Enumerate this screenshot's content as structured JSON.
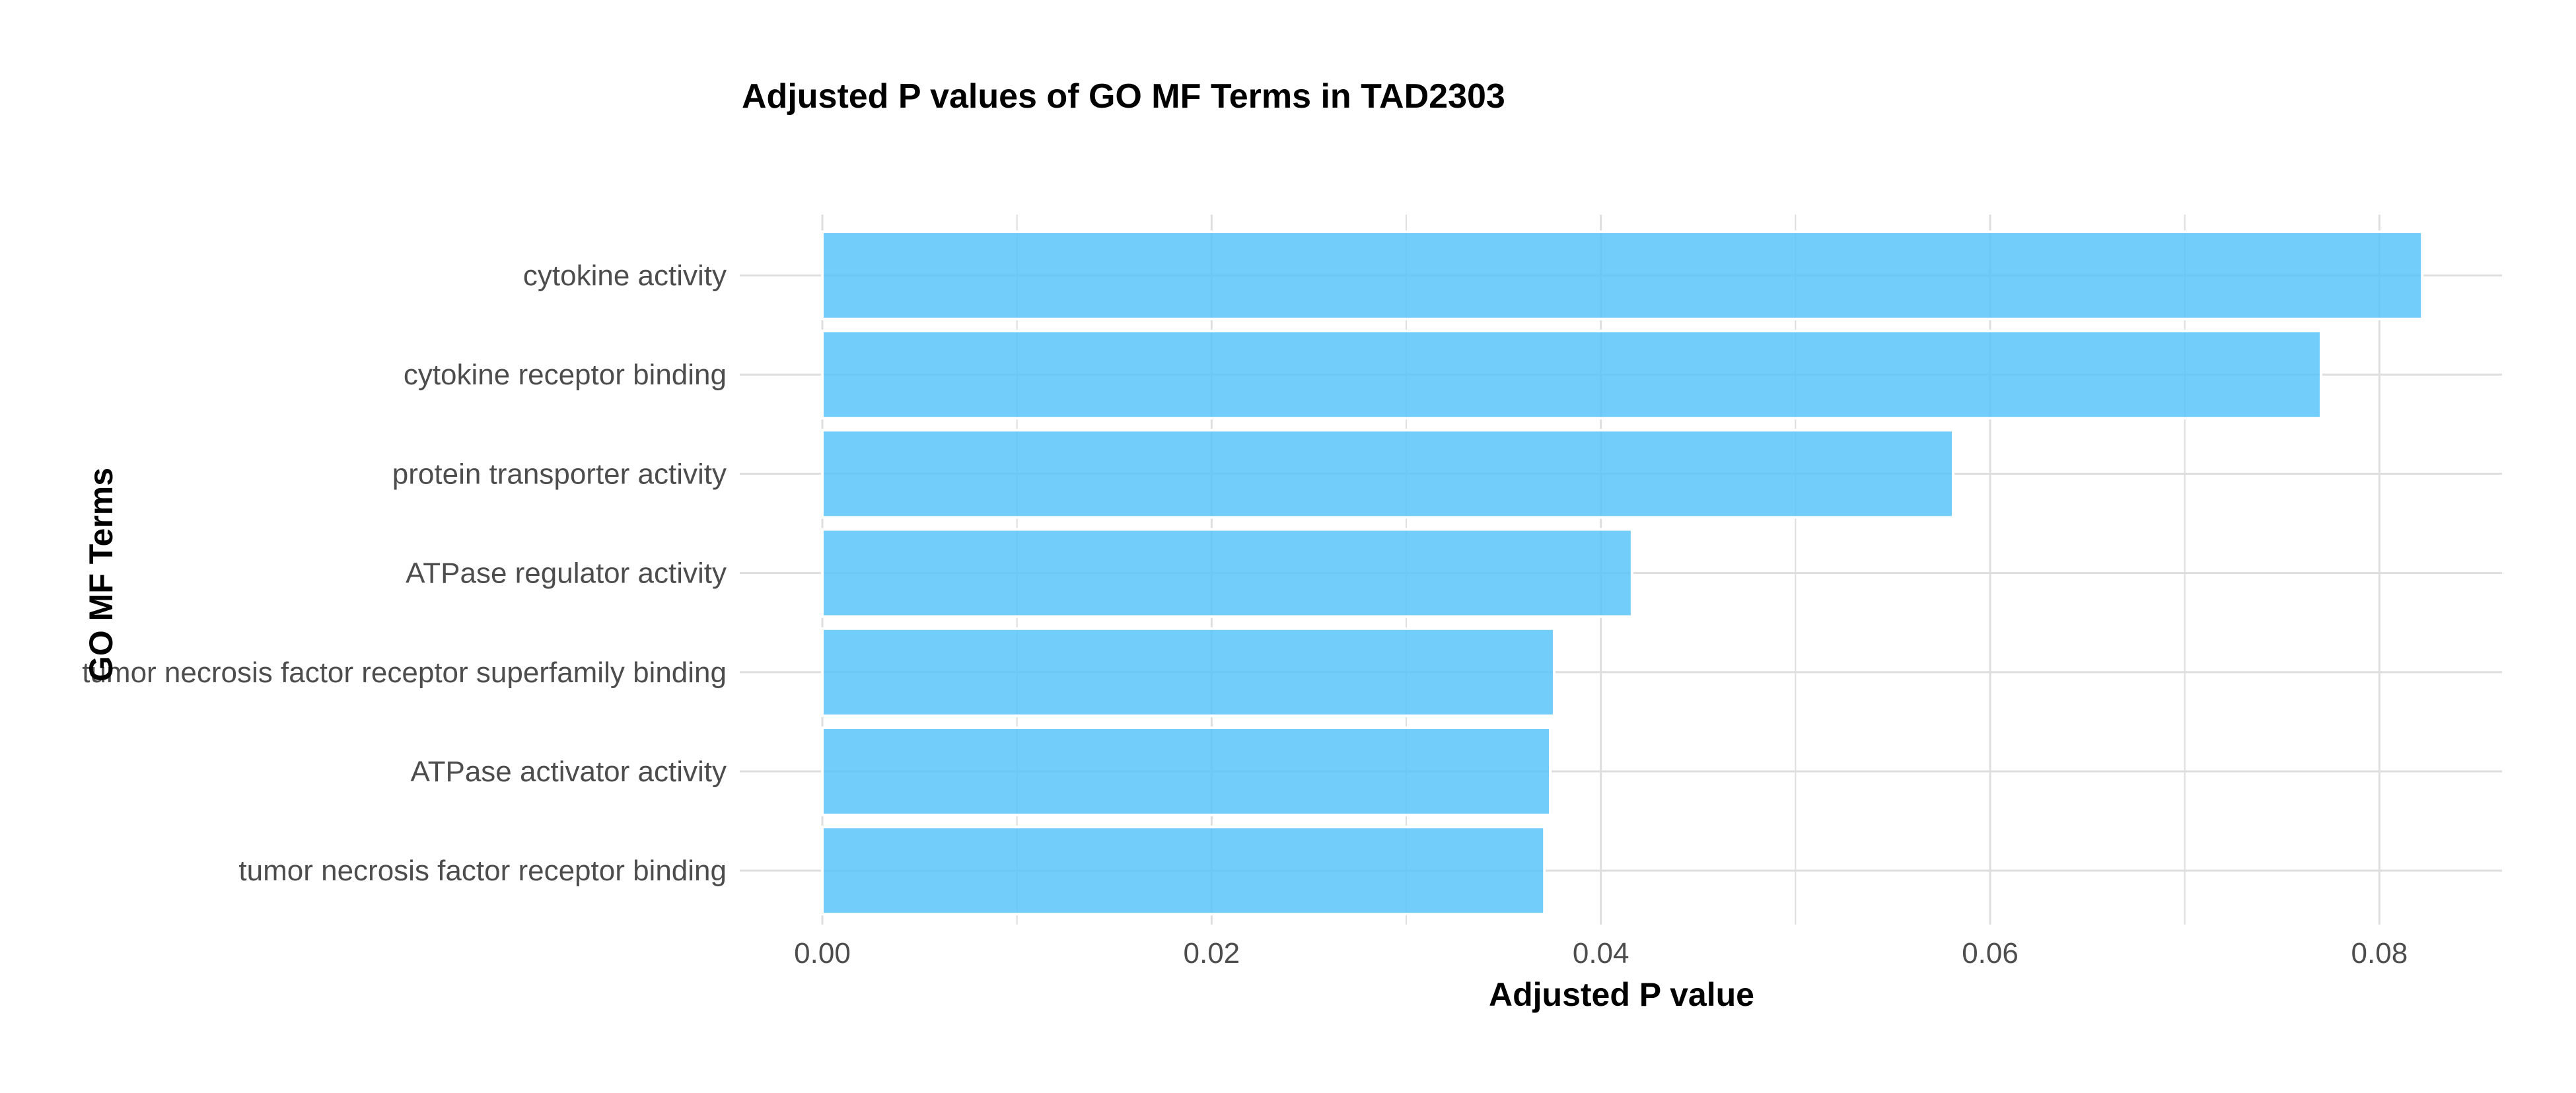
{
  "chart_data": {
    "type": "bar",
    "orientation": "horizontal",
    "title": "Adjusted P values of GO MF Terms in TAD2303",
    "xlabel": "Adjusted P value",
    "ylabel": "GO MF Terms",
    "categories": [
      "cytokine activity",
      "cytokine receptor binding",
      "protein transporter activity",
      "ATPase regulator activity",
      "tumor necrosis factor receptor superfamily binding",
      "ATPase activator activity",
      "tumor necrosis factor receptor binding"
    ],
    "values": [
      0.0822,
      0.077,
      0.0581,
      0.0416,
      0.0376,
      0.0374,
      0.0371
    ],
    "xlim": [
      0,
      0.0863
    ],
    "xticks": [
      0.0,
      0.02,
      0.04,
      0.06,
      0.08
    ],
    "xtick_labels": [
      "0.00",
      "0.02",
      "0.04",
      "0.06",
      "0.08"
    ],
    "grid": true,
    "legend": "none",
    "bar_color": "#5bc4fa",
    "bar_stroke": "#ffffff",
    "grid_color": "#dedede"
  }
}
